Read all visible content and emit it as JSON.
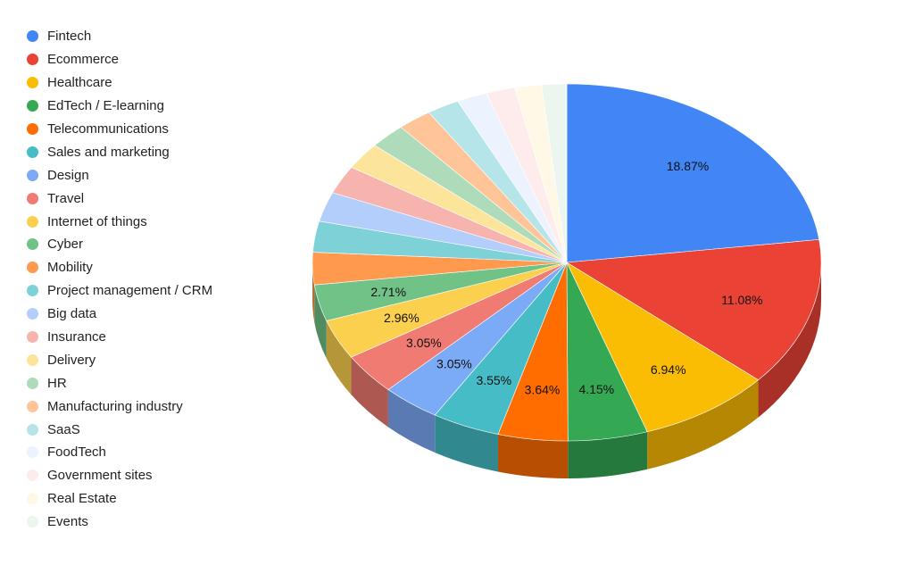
{
  "chart_data": {
    "type": "pie",
    "style": "3d",
    "legend_position": "left",
    "series": [
      {
        "name": "Fintech",
        "value": 18.87,
        "color": "#4285f4",
        "label": "18.87%"
      },
      {
        "name": "Ecommerce",
        "value": 11.08,
        "color": "#ea4335",
        "label": "11.08%"
      },
      {
        "name": "Healthcare",
        "value": 6.94,
        "color": "#fbbc04",
        "label": "6.94%"
      },
      {
        "name": "EdTech / E-learning",
        "value": 4.15,
        "color": "#34a853",
        "label": "4.15%"
      },
      {
        "name": "Telecommunications",
        "value": 3.64,
        "color": "#ff6d01",
        "label": "3.64%"
      },
      {
        "name": "Sales and marketing",
        "value": 3.55,
        "color": "#46bdc6",
        "label": "3.55%"
      },
      {
        "name": "Design",
        "value": 3.05,
        "color": "#7baaf7",
        "label": "3.05%"
      },
      {
        "name": "Travel",
        "value": 3.05,
        "color": "#f07b72",
        "label": "3.05%"
      },
      {
        "name": "Internet of things",
        "value": 2.96,
        "color": "#fcd04f",
        "label": "2.96%"
      },
      {
        "name": "Cyber",
        "value": 2.71,
        "color": "#71c287",
        "label": "2.71%"
      },
      {
        "name": "Mobility",
        "value": 2.4,
        "color": "#ff994d",
        "label": ""
      },
      {
        "name": "Project management / CRM",
        "value": 2.3,
        "color": "#7ed1d7",
        "label": ""
      },
      {
        "name": "Big data",
        "value": 2.2,
        "color": "#b3cefb",
        "label": ""
      },
      {
        "name": "Insurance",
        "value": 2.1,
        "color": "#f7b4ae",
        "label": ""
      },
      {
        "name": "Delivery",
        "value": 2.0,
        "color": "#fde49b",
        "label": ""
      },
      {
        "name": "HR",
        "value": 1.9,
        "color": "#aedcba",
        "label": ""
      },
      {
        "name": "Manufacturing industry",
        "value": 1.8,
        "color": "#ffc599",
        "label": ""
      },
      {
        "name": "SaaS",
        "value": 1.7,
        "color": "#b5e5e8",
        "label": ""
      },
      {
        "name": "FoodTech",
        "value": 1.6,
        "color": "#ecf3fe",
        "label": ""
      },
      {
        "name": "Government sites",
        "value": 1.5,
        "color": "#fdeceb",
        "label": ""
      },
      {
        "name": "Real Estate",
        "value": 1.4,
        "color": "#fff8e6",
        "label": ""
      },
      {
        "name": "Events",
        "value": 1.3,
        "color": "#ebf6ee",
        "label": ""
      }
    ]
  }
}
